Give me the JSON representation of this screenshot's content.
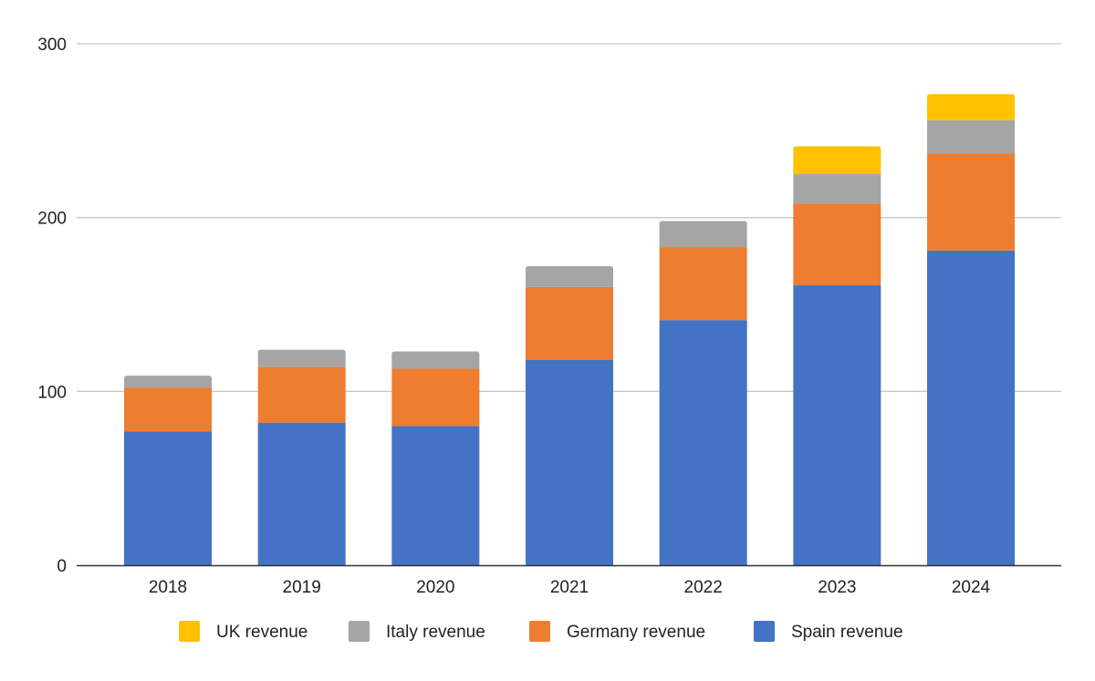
{
  "chart_data": {
    "type": "bar",
    "stacked": true,
    "categories": [
      "2018",
      "2019",
      "2020",
      "2021",
      "2022",
      "2023",
      "2024"
    ],
    "series": [
      {
        "name": "Spain revenue",
        "color": "#4472C4",
        "values": [
          77,
          82,
          80,
          118,
          141,
          161,
          181
        ]
      },
      {
        "name": "Germany revenue",
        "color": "#ED7D31",
        "values": [
          25,
          32,
          33,
          42,
          42,
          47,
          56
        ]
      },
      {
        "name": "Italy revenue",
        "color": "#A5A5A5",
        "values": [
          7,
          10,
          10,
          12,
          15,
          17,
          19
        ]
      },
      {
        "name": "UK revenue",
        "color": "#FFC000",
        "values": [
          0,
          0,
          0,
          0,
          0,
          16,
          15
        ]
      }
    ],
    "legend_order": [
      "UK revenue",
      "Italy revenue",
      "Germany revenue",
      "Spain revenue"
    ],
    "yticks": [
      "0",
      "100",
      "200",
      "300"
    ],
    "ylim": [
      0,
      300
    ],
    "grid": true,
    "legend_position": "bottom",
    "title": "",
    "xlabel": "",
    "ylabel": ""
  }
}
